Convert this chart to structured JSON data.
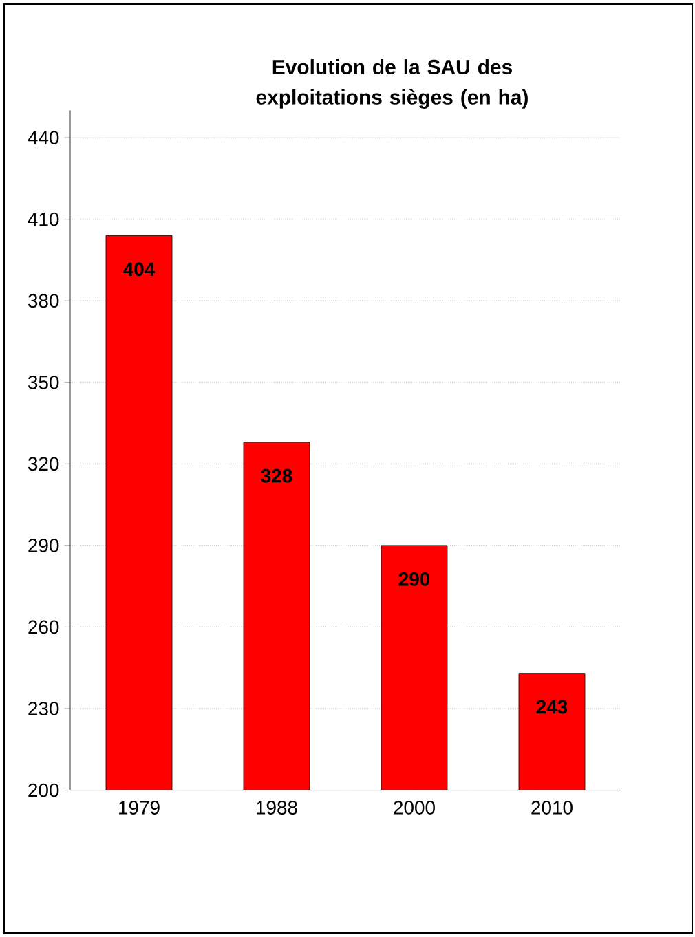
{
  "chart_data": {
    "type": "bar",
    "title": "Evolution de la SAU des exploitations sièges (en ha)",
    "categories": [
      "1979",
      "1988",
      "2000",
      "2010"
    ],
    "values": [
      404,
      328,
      290,
      243
    ],
    "color": "#ff0000",
    "ylim": [
      200,
      450
    ],
    "yticks": [
      200,
      230,
      260,
      290,
      320,
      350,
      380,
      410,
      440
    ],
    "grid": "y",
    "data_labels": true
  }
}
